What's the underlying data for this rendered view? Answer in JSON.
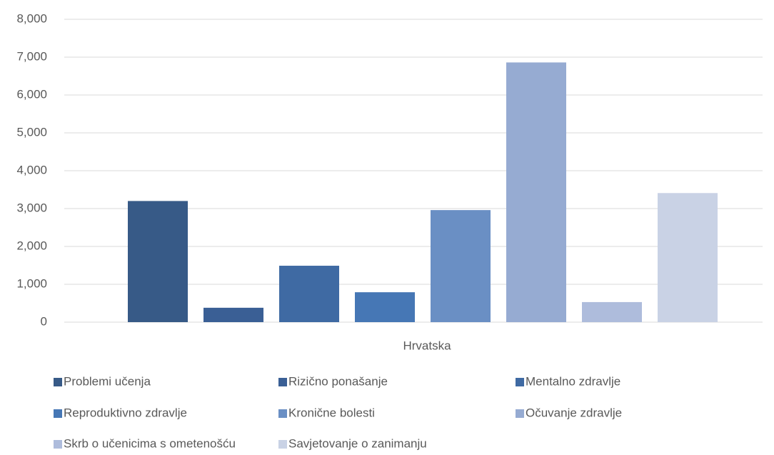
{
  "chart_data": {
    "type": "bar",
    "categories": [
      "Hrvatska"
    ],
    "series": [
      {
        "name": "Problemi učenja",
        "color": "#375a87",
        "values": [
          3200
        ]
      },
      {
        "name": "Rizično ponašanje",
        "color": "#3a5f95",
        "values": [
          380
        ]
      },
      {
        "name": "Mentalno zdravlje",
        "color": "#3f6aa3",
        "values": [
          1490
        ]
      },
      {
        "name": "Reproduktivno zdravlje",
        "color": "#4677b5",
        "values": [
          790
        ]
      },
      {
        "name": "Kronične bolesti",
        "color": "#6a8fc4",
        "values": [
          2960
        ]
      },
      {
        "name": "Očuvanje zdravlje",
        "color": "#96abd2",
        "values": [
          6860
        ]
      },
      {
        "name": "Skrb o učenicima s ometenošću",
        "color": "#aebcdc",
        "values": [
          530
        ]
      },
      {
        "name": "Savjetovanje o zanimanju",
        "color": "#c9d2e5",
        "values": [
          3410
        ]
      }
    ],
    "ylim": [
      0,
      8000
    ],
    "yticks": [
      0,
      {
        "value": 1000,
        "label": "1,000"
      },
      {
        "value": 2000,
        "label": "2,000"
      },
      {
        "value": 3000,
        "label": "3,000"
      },
      {
        "value": 4000,
        "label": "4,000"
      },
      {
        "value": 5000,
        "label": "5,000"
      },
      {
        "value": 6000,
        "label": "6,000"
      },
      {
        "value": 7000,
        "label": "7,000"
      },
      {
        "value": 8000,
        "label": "8,000"
      }
    ],
    "grid": true,
    "legend": "bottom"
  }
}
